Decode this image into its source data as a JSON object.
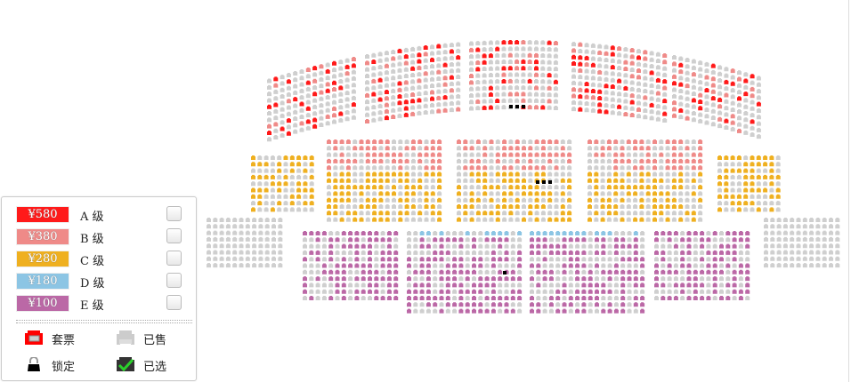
{
  "colors": {
    "A": "#ff1a1a",
    "B": "#ef8a88",
    "C": "#efb020",
    "D": "#8cc5e4",
    "E": "#bb68a6",
    "sold": "#cfcfcf",
    "locked": "#000000",
    "selected": "#2bd12b"
  },
  "legend": {
    "prices": [
      {
        "grade": "A",
        "price": "¥580",
        "label": "A 级",
        "checked": false
      },
      {
        "grade": "B",
        "price": "¥380",
        "label": "B 级",
        "checked": false
      },
      {
        "grade": "C",
        "price": "¥280",
        "label": "C 级",
        "checked": false
      },
      {
        "grade": "D",
        "price": "¥180",
        "label": "D 级",
        "checked": false
      },
      {
        "grade": "E",
        "price": "¥100",
        "label": "E 级",
        "checked": false
      }
    ],
    "status": {
      "package": {
        "label": "套票",
        "icon": "package-seat-icon"
      },
      "sold": {
        "label": "已售",
        "icon": "sold-seat-icon"
      },
      "locked": {
        "label": "锁定",
        "icon": "lock-icon"
      },
      "selected": {
        "label": "已选",
        "icon": "selected-seat-icon"
      }
    }
  },
  "sections": [
    {
      "tier": "upper",
      "grades": [
        "A",
        "B"
      ],
      "rows": 10,
      "cols": 14
    },
    {
      "tier": "upper",
      "grades": [
        "A",
        "B"
      ],
      "rows": 11,
      "cols": 15
    },
    {
      "tier": "upper",
      "grades": [
        "A",
        "B"
      ],
      "rows": 11,
      "cols": 14
    },
    {
      "tier": "upper",
      "grades": [
        "A",
        "B"
      ],
      "rows": 11,
      "cols": 15
    },
    {
      "tier": "upper",
      "grades": [
        "A",
        "B"
      ],
      "rows": 10,
      "cols": 14
    },
    {
      "tier": "middle",
      "grades": [
        "C"
      ],
      "rows": 9,
      "cols": 10
    },
    {
      "tier": "middle",
      "grades": [
        "B",
        "C"
      ],
      "rows": 13,
      "cols": 18
    },
    {
      "tier": "middle",
      "grades": [
        "B",
        "C"
      ],
      "rows": 13,
      "cols": 18
    },
    {
      "tier": "middle",
      "grades": [
        "B",
        "C"
      ],
      "rows": 13,
      "cols": 18
    },
    {
      "tier": "middle",
      "grades": [
        "C"
      ],
      "rows": 9,
      "cols": 10
    },
    {
      "tier": "lower",
      "grades": [],
      "rows": 8,
      "cols": 12
    },
    {
      "tier": "lower",
      "grades": [
        "E"
      ],
      "rows": 11,
      "cols": 15
    },
    {
      "tier": "lower",
      "grades": [
        "D",
        "E"
      ],
      "rows": 13,
      "cols": 18
    },
    {
      "tier": "lower",
      "grades": [
        "D",
        "E"
      ],
      "rows": 13,
      "cols": 18
    },
    {
      "tier": "lower",
      "grades": [
        "E"
      ],
      "rows": 11,
      "cols": 15
    },
    {
      "tier": "lower",
      "grades": [],
      "rows": 8,
      "cols": 12
    }
  ]
}
